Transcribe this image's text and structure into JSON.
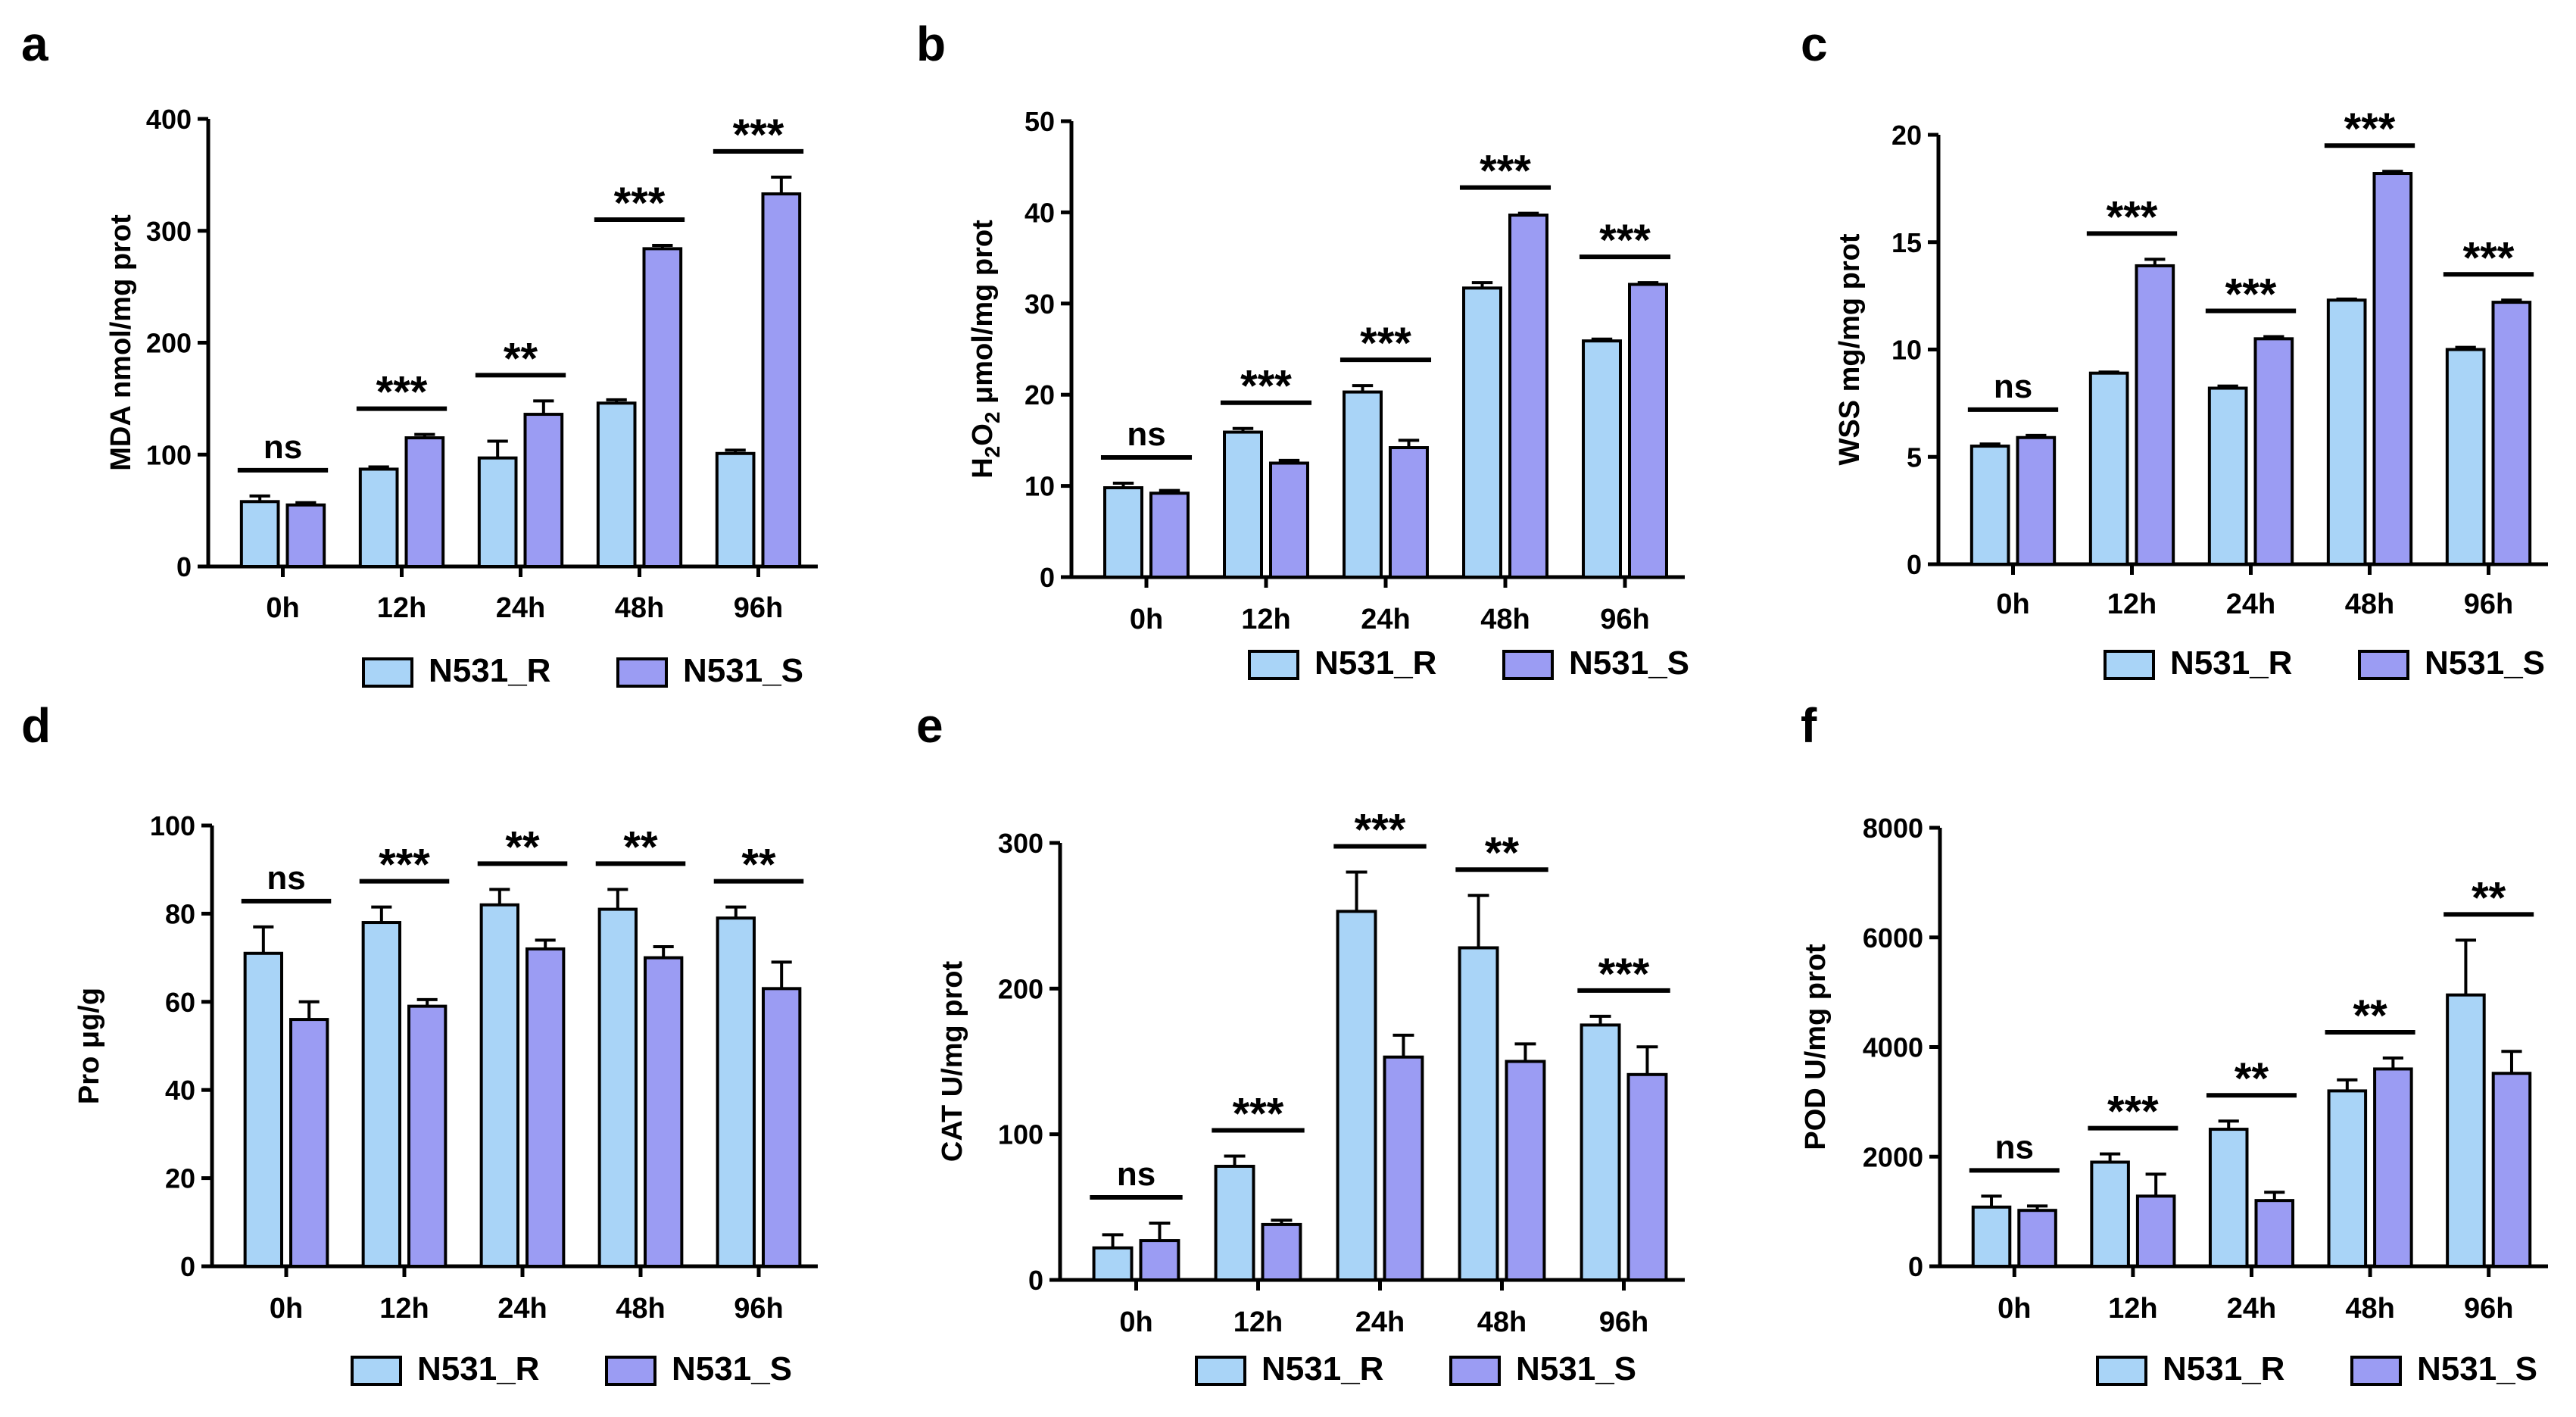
{
  "colors": {
    "series_R": "#a9d4f7",
    "series_S": "#9b9cf3"
  },
  "legend": {
    "labels": [
      "N531_R",
      "N531_S"
    ]
  },
  "chart_data": [
    {
      "panel": "a",
      "type": "bar",
      "ylabel": "MDA nmol/mg prot",
      "ylabel_sub": "",
      "ylabel_rest": "",
      "categories": [
        "0h",
        "12h",
        "24h",
        "48h",
        "96h"
      ],
      "ylim": [
        0,
        400
      ],
      "yticks": [
        0,
        100,
        200,
        300,
        400
      ],
      "series": [
        {
          "name": "N531_R",
          "values": [
            58,
            87,
            97,
            146,
            101
          ],
          "errors": [
            5,
            2,
            15,
            3,
            3
          ]
        },
        {
          "name": "N531_S",
          "values": [
            55,
            115,
            136,
            284,
            333
          ],
          "errors": [
            2,
            3,
            12,
            3,
            15
          ]
        }
      ],
      "significance": [
        "ns",
        "***",
        "**",
        "***",
        "***"
      ]
    },
    {
      "panel": "b",
      "type": "bar",
      "ylabel": "H",
      "ylabel_sub": "2",
      "ylabel_rest": "O",
      "ylabel_sub2": "2",
      "ylabel_tail": " μmol/mg prot",
      "categories": [
        "0h",
        "12h",
        "24h",
        "48h",
        "96h"
      ],
      "ylim": [
        0,
        50
      ],
      "yticks": [
        0,
        10,
        20,
        30,
        40,
        50
      ],
      "series": [
        {
          "name": "N531_R",
          "values": [
            9.8,
            15.9,
            20.3,
            31.7,
            25.9
          ],
          "errors": [
            0.5,
            0.4,
            0.7,
            0.6,
            0.2
          ]
        },
        {
          "name": "N531_S",
          "values": [
            9.2,
            12.5,
            14.2,
            39.7,
            32.1
          ],
          "errors": [
            0.3,
            0.3,
            0.8,
            0.2,
            0.2
          ]
        }
      ],
      "significance": [
        "ns",
        "***",
        "***",
        "***",
        "***"
      ]
    },
    {
      "panel": "c",
      "type": "bar",
      "ylabel": "WSS mg/mg prot",
      "ylabel_sub": "",
      "ylabel_rest": "",
      "categories": [
        "0h",
        "12h",
        "24h",
        "48h",
        "96h"
      ],
      "ylim": [
        0,
        20
      ],
      "yticks": [
        0,
        5,
        10,
        15,
        20
      ],
      "series": [
        {
          "name": "N531_R",
          "values": [
            5.5,
            8.9,
            8.2,
            12.3,
            10.0
          ],
          "errors": [
            0.1,
            0.05,
            0.1,
            0.05,
            0.1
          ]
        },
        {
          "name": "N531_S",
          "values": [
            5.9,
            13.9,
            10.5,
            18.2,
            12.2
          ],
          "errors": [
            0.1,
            0.3,
            0.1,
            0.1,
            0.1
          ]
        }
      ],
      "significance": [
        "ns",
        "***",
        "***",
        "***",
        "***"
      ]
    },
    {
      "panel": "d",
      "type": "bar",
      "ylabel": "Pro μg/g",
      "ylabel_sub": "",
      "ylabel_rest": "",
      "categories": [
        "0h",
        "12h",
        "24h",
        "48h",
        "96h"
      ],
      "ylim": [
        0,
        100
      ],
      "yticks": [
        0,
        20,
        40,
        60,
        80,
        100
      ],
      "series": [
        {
          "name": "N531_R",
          "values": [
            71,
            78,
            82,
            81,
            79
          ],
          "errors": [
            6,
            3.5,
            3.5,
            4.5,
            2.5
          ]
        },
        {
          "name": "N531_S",
          "values": [
            56,
            59,
            72,
            70,
            63
          ],
          "errors": [
            4,
            1.5,
            2,
            2.5,
            6
          ]
        }
      ],
      "significance": [
        "ns",
        "***",
        "**",
        "**",
        "**"
      ]
    },
    {
      "panel": "e",
      "type": "bar",
      "ylabel": "CAT U/mg prot",
      "ylabel_sub": "",
      "ylabel_rest": "",
      "categories": [
        "0h",
        "12h",
        "24h",
        "48h",
        "96h"
      ],
      "ylim": [
        0,
        300
      ],
      "yticks": [
        0,
        100,
        200,
        300
      ],
      "series": [
        {
          "name": "N531_R",
          "values": [
            22,
            78,
            253,
            228,
            175
          ],
          "errors": [
            9,
            7,
            27,
            36,
            6
          ]
        },
        {
          "name": "N531_S",
          "values": [
            27,
            38,
            153,
            150,
            141
          ],
          "errors": [
            12,
            3,
            15,
            12,
            19
          ]
        }
      ],
      "significance": [
        "ns",
        "***",
        "***",
        "**",
        "***"
      ]
    },
    {
      "panel": "f",
      "type": "bar",
      "ylabel": "POD U/mg prot",
      "ylabel_sub": "",
      "ylabel_rest": "",
      "categories": [
        "0h",
        "12h",
        "24h",
        "48h",
        "96h"
      ],
      "ylim": [
        0,
        8000
      ],
      "yticks": [
        0,
        2000,
        4000,
        6000,
        8000
      ],
      "series": [
        {
          "name": "N531_R",
          "values": [
            1080,
            1900,
            2500,
            3200,
            4950
          ],
          "errors": [
            200,
            150,
            150,
            200,
            1000
          ]
        },
        {
          "name": "N531_S",
          "values": [
            1020,
            1280,
            1200,
            3600,
            3520
          ],
          "errors": [
            80,
            400,
            150,
            200,
            400
          ]
        }
      ],
      "significance": [
        "ns",
        "***",
        "**",
        "**",
        "**"
      ]
    }
  ]
}
